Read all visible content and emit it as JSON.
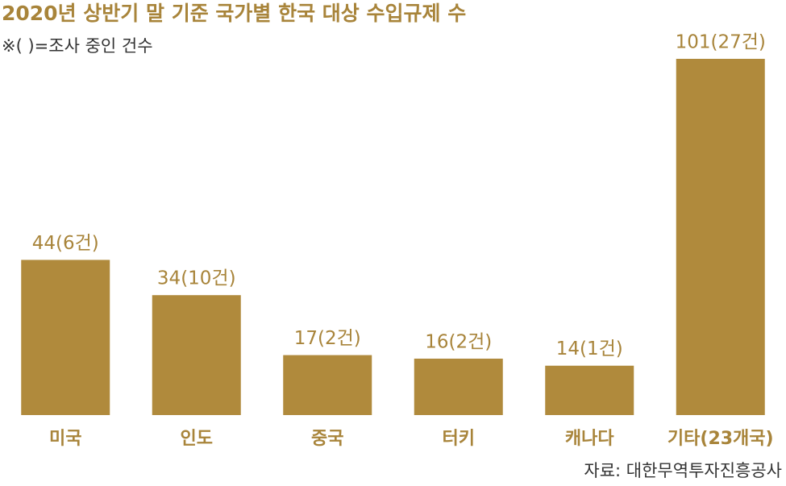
{
  "chart_data": {
    "type": "bar",
    "title": "2020년 상반기 말 기준 국가별 한국 대상 수입규제 수",
    "subtitle": "※(   )=조사 중인 건수",
    "source": "자료: 대한무역투자진흥공사",
    "categories": [
      "미국",
      "인도",
      "중국",
      "터키",
      "캐나다",
      "기타(23개국)"
    ],
    "values": [
      44,
      34,
      17,
      16,
      14,
      101
    ],
    "value_labels": [
      "44(6건)",
      "34(10건)",
      "17(2건)",
      "16(2건)",
      "14(1건)",
      "101(27건)"
    ],
    "color": "#b08a3c"
  }
}
